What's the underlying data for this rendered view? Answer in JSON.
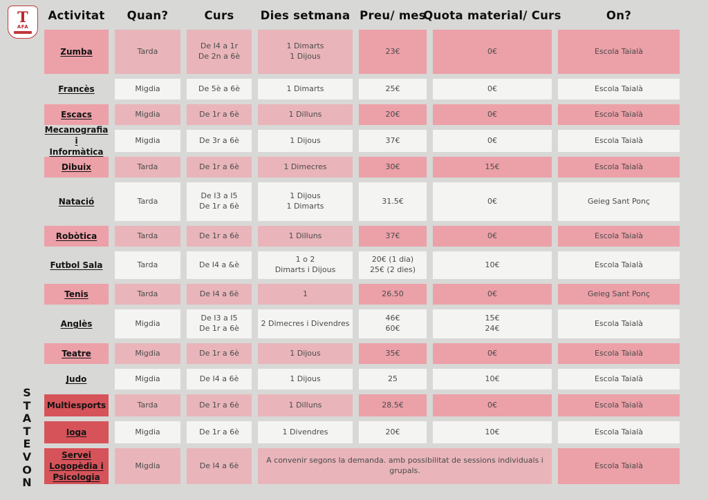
{
  "logo": {
    "letter": "T",
    "label": "AFA"
  },
  "novetats_label": "NOVETATS",
  "colors": {
    "background": "#d8d8d6",
    "deep_pink": "#eca0a8",
    "light_pink": "#e9b5ba",
    "cell_white": "#f4f4f2",
    "novetats_red": "#d6535a",
    "logo_red": "#b5282e"
  },
  "columns": [
    "Activitat",
    "Quan?",
    "Curs",
    "Dies setmana",
    "Preu/ mes",
    "Quota material/ Curs",
    "On?"
  ],
  "rows": [
    {
      "activity": "Zumba",
      "quan": "Tarda",
      "curs": "De I4 a 1r\nDe 2n a 6è",
      "dies": "1 Dimarts\n1 Dijous",
      "preu": "23€",
      "quota": "0€",
      "on": "Escola Taialà"
    },
    {
      "activity": "Francès",
      "quan": "Migdia",
      "curs": "De 5è a 6è",
      "dies": "1 Dimarts",
      "preu": "25€",
      "quota": "0€",
      "on": "Escola Taialà"
    },
    {
      "activity": "Escacs",
      "quan": "Migdia",
      "curs": "De 1r a 6è",
      "dies": "1 Dilluns",
      "preu": "20€",
      "quota": "0€",
      "on": "Escola Taialà"
    },
    {
      "activity": "Mecanografia i\nInformàtica",
      "quan": "Migdia",
      "curs": "De 3r a 6è",
      "dies": "1 Dijous",
      "preu": "37€",
      "quota": "0€",
      "on": "Escola Taialà"
    },
    {
      "activity": "Dibuix",
      "quan": "Tarda",
      "curs": "De 1r a 6è",
      "dies": "1 Dimecres",
      "preu": "30€",
      "quota": "15€",
      "on": "Escola Taialà"
    },
    {
      "activity": "Natació",
      "quan": "Tarda",
      "curs": "De I3 a I5\nDe 1r a 6è",
      "dies": "1 Dijous\n1 Dimarts",
      "preu": "31.5€",
      "quota": "0€",
      "on": "Geieg Sant Ponç"
    },
    {
      "activity": "Robòtica",
      "quan": "Tarda",
      "curs": "De 1r a 6è",
      "dies": "1 Dilluns",
      "preu": "37€",
      "quota": "0€",
      "on": "Escola Taialà"
    },
    {
      "activity": "Futbol Sala",
      "quan": "Tarda",
      "curs": "De I4 a &è",
      "dies": "1 o 2\nDimarts i Dijous",
      "preu": "20€ (1 dia)\n25€ (2 dies)",
      "quota": "10€",
      "on": "Escola Taialà"
    },
    {
      "activity": "Tenis",
      "quan": "Tarda",
      "curs": "De I4 a 6è",
      "dies": "1",
      "preu": "26.50",
      "quota": "0€",
      "on": "Geieg Sant Ponç"
    },
    {
      "activity": "Anglès",
      "quan": "Migdia",
      "curs": "De I3 a I5\nDe 1r a 6è",
      "dies": "2 Dimecres i Divendres",
      "preu": "46€\n60€",
      "quota": "15€\n24€",
      "on": "Escola Taialà"
    },
    {
      "activity": "Teatre",
      "quan": "Migdia",
      "curs": "De 1r a 6è",
      "dies": "1 Dijous",
      "preu": "35€",
      "quota": "0€",
      "on": "Escola Taialà"
    },
    {
      "activity": "Judo",
      "quan": "Migdia",
      "curs": "De I4 a 6è",
      "dies": "1 Dijous",
      "preu": "25",
      "quota": "10€",
      "on": "Escola Taialà"
    },
    {
      "activity": "Multiesports",
      "quan": "Tarda",
      "curs": "De 1r a 6è",
      "dies": "1 Dilluns",
      "preu": "28.5€",
      "quota": "0€",
      "on": "Escola Taialà"
    },
    {
      "activity": "Ioga",
      "quan": "Migdia",
      "curs": "De 1r a 6è",
      "dies": "1 Divendres",
      "preu": "20€",
      "quota": "10€",
      "on": "Escola Taialà"
    },
    {
      "activity": "Servei\nLogopèdia i\nPsicologia",
      "quan": "Migdia",
      "curs": "De I4 a 6è",
      "dies": "A convenir segons la demanda. amb possibilitat de sessions individuals i grupals.",
      "on": "Escola Taialà"
    }
  ]
}
